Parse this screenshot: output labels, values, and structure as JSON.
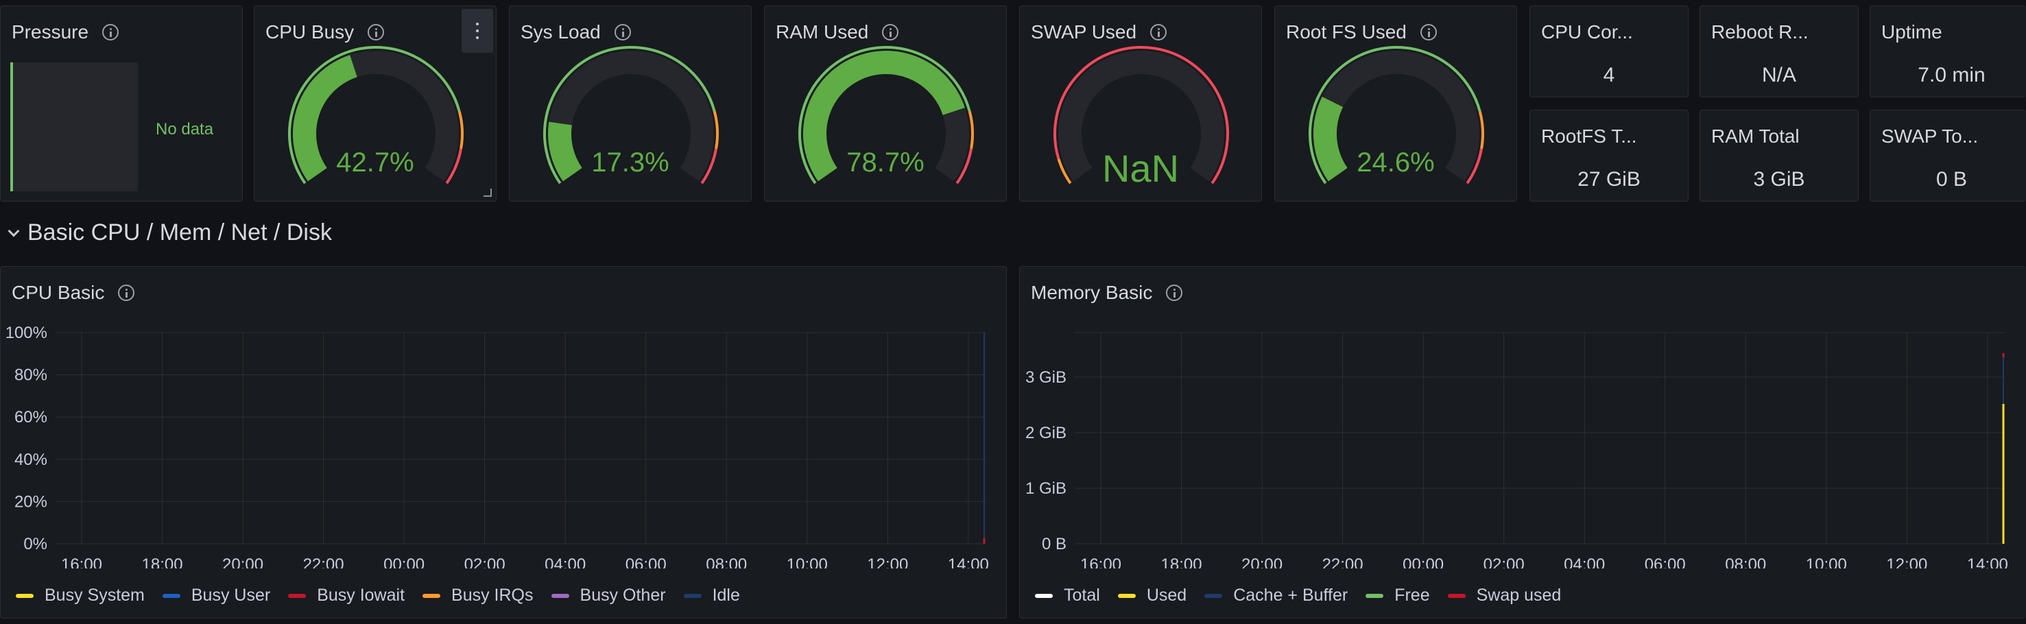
{
  "top_panels": {
    "pressure": {
      "title": "Pressure",
      "no_data": "No data"
    },
    "gauges": [
      {
        "title": "CPU Busy",
        "value_text": "42.7%",
        "fraction": 0.427
      },
      {
        "title": "Sys Load",
        "value_text": "17.3%",
        "fraction": 0.173
      },
      {
        "title": "RAM Used",
        "value_text": "78.7%",
        "fraction": 0.787
      },
      {
        "title": "SWAP Used",
        "value_text": "NaN",
        "fraction": 0
      },
      {
        "title": "Root FS Used",
        "value_text": "24.6%",
        "fraction": 0.246
      }
    ],
    "stats": [
      {
        "title": "CPU Cor...",
        "value": "4"
      },
      {
        "title": "Reboot R...",
        "value": "N/A"
      },
      {
        "title": "Uptime",
        "value": "7.0 min"
      },
      {
        "title": "RootFS T...",
        "value": "27 GiB"
      },
      {
        "title": "RAM Total",
        "value": "3 GiB"
      },
      {
        "title": "SWAP To...",
        "value": "0 B"
      }
    ]
  },
  "row": {
    "title": "Basic CPU / Mem / Net / Disk"
  },
  "colors": {
    "gauge_fill": "#5fad45",
    "gauge_track": "#25272d",
    "threshold_green": "#73bf69",
    "threshold_orange": "#ff9830",
    "threshold_red": "#f2495c"
  },
  "chart_data": [
    {
      "type": "line",
      "title": "CPU Basic",
      "x": [
        "16:00",
        "18:00",
        "20:00",
        "22:00",
        "00:00",
        "02:00",
        "04:00",
        "06:00",
        "08:00",
        "10:00",
        "12:00",
        "14:00"
      ],
      "y_ticks": [
        "0%",
        "20%",
        "40%",
        "60%",
        "80%",
        "100%"
      ],
      "ylim": [
        0,
        100
      ],
      "grid": true,
      "legend_position": "bottom",
      "series": [
        {
          "name": "Busy System",
          "color": "#fade2a"
        },
        {
          "name": "Busy User",
          "color": "#1f60c4"
        },
        {
          "name": "Busy Iowait",
          "color": "#c4162a"
        },
        {
          "name": "Busy IRQs",
          "color": "#ff9830"
        },
        {
          "name": "Busy Other",
          "color": "#a16bc4"
        },
        {
          "name": "Idle",
          "color": "#1f3b6b"
        }
      ]
    },
    {
      "type": "line",
      "title": "Memory Basic",
      "x": [
        "16:00",
        "18:00",
        "20:00",
        "22:00",
        "00:00",
        "02:00",
        "04:00",
        "06:00",
        "08:00",
        "10:00",
        "12:00",
        "14:00"
      ],
      "y_ticks": [
        "0 B",
        "1 GiB",
        "2 GiB",
        "3 GiB"
      ],
      "ylim": [
        0,
        3.8
      ],
      "grid": true,
      "legend_position": "bottom",
      "series": [
        {
          "name": "Total",
          "color": "#ffffff"
        },
        {
          "name": "Used",
          "color": "#fade2a"
        },
        {
          "name": "Cache + Buffer",
          "color": "#1f3b6b"
        },
        {
          "name": "Free",
          "color": "#73bf69"
        },
        {
          "name": "Swap used",
          "color": "#c4162a"
        }
      ]
    }
  ]
}
